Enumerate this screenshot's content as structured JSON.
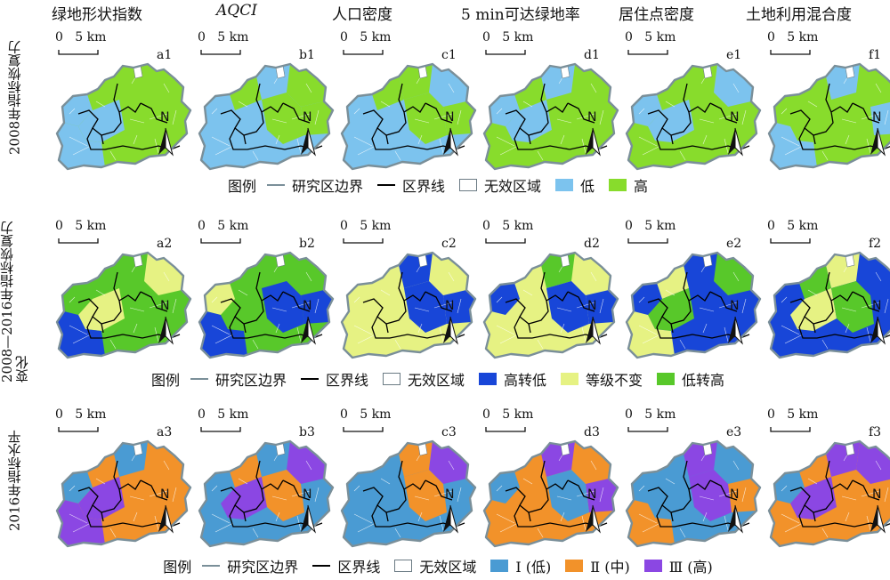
{
  "columns": [
    {
      "id": "a",
      "title": "绿地形状指数",
      "italic": false
    },
    {
      "id": "b",
      "title": "AQCI",
      "italic": true
    },
    {
      "id": "c",
      "title": "人口密度",
      "italic": false
    },
    {
      "id": "d",
      "title": "5 min可达绿地率",
      "italic": false
    },
    {
      "id": "e",
      "title": "居住点密度",
      "italic": false
    },
    {
      "id": "f",
      "title": "土地利用混合度",
      "italic": false
    }
  ],
  "scale_label": "0   5 km",
  "north_label": "N",
  "rows": [
    {
      "id": "row1",
      "title": "2008年指标恢复力",
      "labels": [
        "a1",
        "b1",
        "c1",
        "d1",
        "e1",
        "f1"
      ],
      "legend": {
        "title": "图例",
        "boundary": "研究区边界",
        "district": "区界线",
        "invalid": "无效区域",
        "classes": [
          {
            "label": "低",
            "color": "#7cc3ee"
          },
          {
            "label": "高",
            "color": "#88dc2c"
          }
        ]
      },
      "patterns": [
        {
          "base": 1,
          "patches": [
            [
              0,
              0
            ],
            [
              5,
              0
            ],
            [
              7,
              0
            ]
          ]
        },
        {
          "base": 0,
          "patches": [
            [
              1,
              1
            ],
            [
              3,
              1
            ],
            [
              4,
              1
            ],
            [
              6,
              1
            ]
          ]
        },
        {
          "base": 0,
          "patches": [
            [
              1,
              1
            ],
            [
              2,
              1
            ],
            [
              4,
              1
            ],
            [
              6,
              1
            ]
          ]
        },
        {
          "base": 1,
          "patches": [
            [
              0,
              0
            ],
            [
              2,
              0
            ],
            [
              5,
              0
            ]
          ]
        },
        {
          "base": 1,
          "patches": [
            [
              0,
              0
            ],
            [
              3,
              0
            ],
            [
              5,
              0
            ]
          ]
        },
        {
          "base": 1,
          "patches": [
            [
              2,
              0
            ],
            [
              4,
              0
            ],
            [
              7,
              0
            ]
          ]
        }
      ]
    },
    {
      "id": "row2",
      "title": "2008—2016年指标恢复力变化",
      "labels": [
        "a2",
        "b2",
        "c2",
        "d2",
        "e2",
        "f2"
      ],
      "legend": {
        "title": "图例",
        "boundary": "研究区边界",
        "district": "区界线",
        "invalid": "无效区域",
        "classes": [
          {
            "label": "高转低",
            "color": "#1846d8"
          },
          {
            "label": "等级不变",
            "color": "#e6f283"
          },
          {
            "label": "低转高",
            "color": "#58c82a"
          }
        ]
      },
      "patterns": [
        {
          "base": 2,
          "patches": [
            [
              3,
              1
            ],
            [
              5,
              1
            ],
            [
              7,
              0
            ]
          ]
        },
        {
          "base": 2,
          "patches": [
            [
              0,
              1
            ],
            [
              4,
              0
            ],
            [
              6,
              0
            ],
            [
              7,
              0
            ]
          ]
        },
        {
          "base": 1,
          "patches": [
            [
              2,
              0
            ],
            [
              4,
              0
            ],
            [
              6,
              0
            ]
          ]
        },
        {
          "base": 1,
          "patches": [
            [
              0,
              0
            ],
            [
              2,
              2
            ],
            [
              4,
              0
            ],
            [
              6,
              0
            ]
          ]
        },
        {
          "base": 0,
          "patches": [
            [
              1,
              1
            ],
            [
              3,
              2
            ],
            [
              5,
              2
            ],
            [
              7,
              1
            ]
          ]
        },
        {
          "base": 0,
          "patches": [
            [
              1,
              2
            ],
            [
              2,
              1
            ],
            [
              5,
              1
            ],
            [
              6,
              2
            ]
          ]
        }
      ]
    },
    {
      "id": "row3",
      "title": "2016年指标水平",
      "labels": [
        "a3",
        "b3",
        "c3",
        "d3",
        "e3",
        "f3"
      ],
      "legend": {
        "title": "图例",
        "boundary": "研究区边界",
        "district": "区界线",
        "invalid": "无效区域",
        "classes": [
          {
            "label": "Ⅰ (低)",
            "color": "#4a9bd3"
          },
          {
            "label": "Ⅱ (中)",
            "color": "#f2922a"
          },
          {
            "label": "Ⅲ (高)",
            "color": "#8b47e3"
          }
        ]
      },
      "patterns": [
        {
          "base": 1,
          "patches": [
            [
              0,
              0
            ],
            [
              2,
              0
            ],
            [
              5,
              2
            ],
            [
              7,
              2
            ]
          ]
        },
        {
          "base": 0,
          "patches": [
            [
              1,
              1
            ],
            [
              3,
              2
            ],
            [
              5,
              2
            ],
            [
              6,
              1
            ]
          ]
        },
        {
          "base": 0,
          "patches": [
            [
              2,
              1
            ],
            [
              3,
              2
            ],
            [
              6,
              1
            ]
          ]
        },
        {
          "base": 1,
          "patches": [
            [
              0,
              0
            ],
            [
              2,
              2
            ],
            [
              4,
              2
            ],
            [
              6,
              0
            ]
          ]
        },
        {
          "base": 0,
          "patches": [
            [
              2,
              2
            ],
            [
              4,
              1
            ],
            [
              6,
              2
            ],
            [
              7,
              1
            ]
          ]
        },
        {
          "base": 1,
          "patches": [
            [
              0,
              0
            ],
            [
              2,
              2
            ],
            [
              3,
              2
            ],
            [
              5,
              2
            ]
          ]
        }
      ]
    }
  ],
  "colors": {
    "boundary": "#7a8f99",
    "district": "#000000",
    "invalid_border": "#6b7b84"
  }
}
